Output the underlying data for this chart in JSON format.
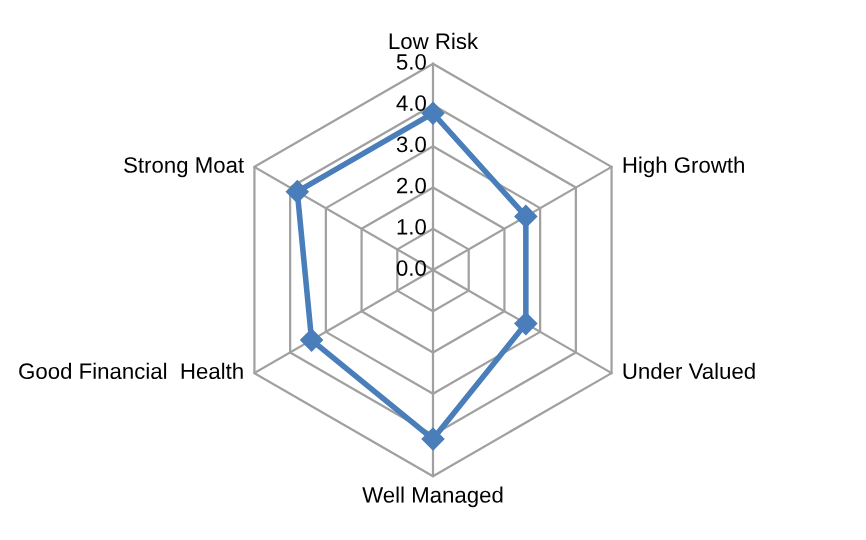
{
  "chart_data": {
    "type": "radar",
    "categories": [
      "Low Risk",
      "High Growth",
      "Under Valued",
      "Well Managed",
      "Good Financial  Health",
      "Strong Moat"
    ],
    "series": [
      {
        "color": "#4a7ebb",
        "values": [
          3.8,
          2.6,
          2.6,
          4.1,
          3.4,
          3.8
        ]
      }
    ],
    "ylim": [
      0,
      5
    ],
    "yticks": [
      {
        "value": 0,
        "label": "0.0"
      },
      {
        "value": 1,
        "label": "1.0"
      },
      {
        "value": 2,
        "label": "2.0"
      },
      {
        "value": 3,
        "label": "3.0"
      },
      {
        "value": 4,
        "label": "4.0"
      },
      {
        "value": 5,
        "label": "5.0"
      }
    ],
    "grid": true,
    "marker": "diamond",
    "line_style": "solid"
  }
}
